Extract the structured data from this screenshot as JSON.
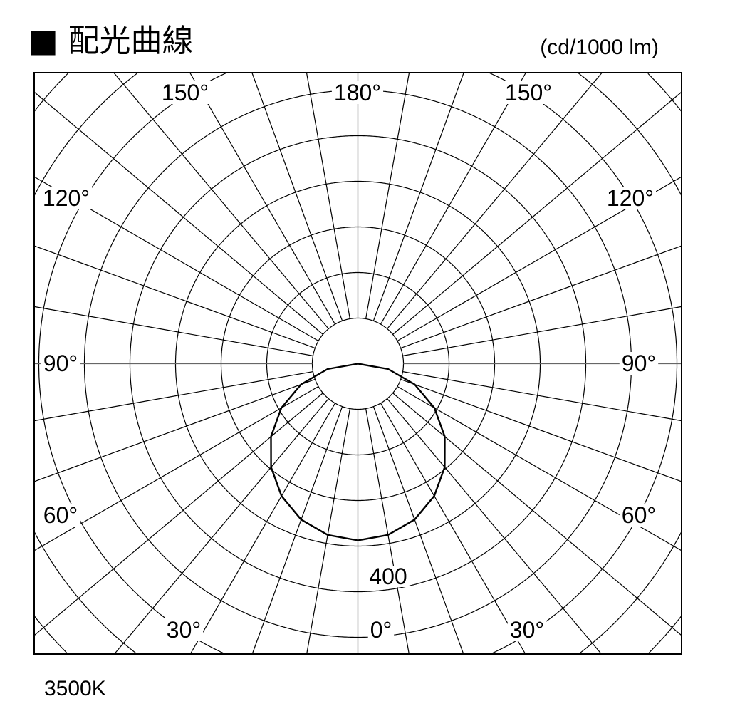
{
  "chart_data": {
    "type": "polar",
    "title": "■ 配光曲線",
    "unit": "(cd/1000 lm)",
    "note": "3500K",
    "radial_tick_label": "400",
    "radial_tick_value": 400,
    "ring_step": 80,
    "ring_max": 800,
    "spoke_step_deg": 10,
    "angle_labels": [
      "0°",
      "30°",
      "60°",
      "90°",
      "120°",
      "150°",
      "180°"
    ],
    "series": [
      {
        "angles_deg": [
          0,
          10,
          20,
          30,
          40,
          50,
          60,
          70,
          80,
          90
        ],
        "values": [
          310,
          305,
          291,
          268,
          237,
          199,
          155,
          106,
          54,
          0
        ],
        "symmetric": true
      }
    ],
    "colors": {
      "curve": "#000000",
      "grid": "#000000"
    }
  }
}
